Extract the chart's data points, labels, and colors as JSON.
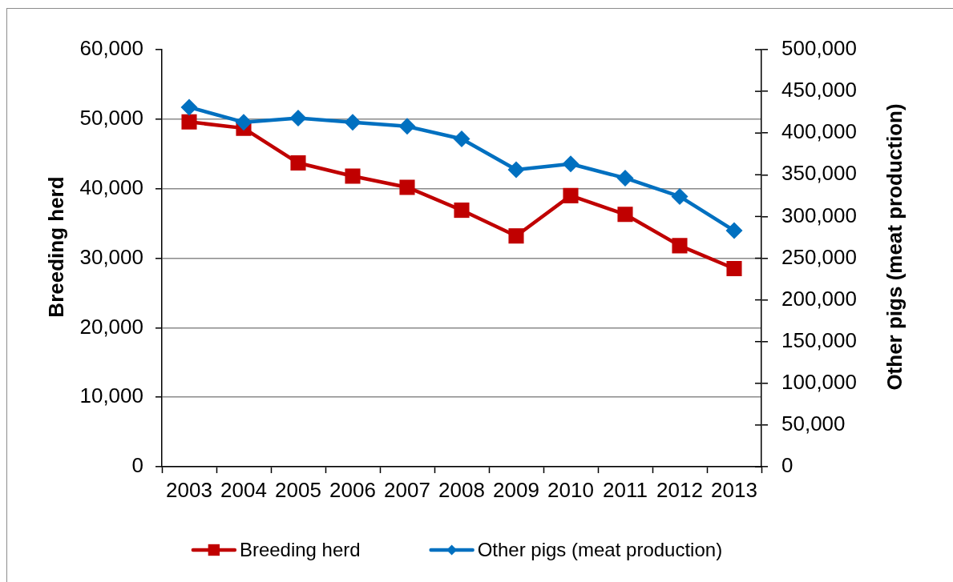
{
  "chart_data": {
    "type": "line",
    "categories": [
      "2003",
      "2004",
      "2005",
      "2006",
      "2007",
      "2008",
      "2009",
      "2010",
      "2011",
      "2012",
      "2013"
    ],
    "ylabel": "Breeding herd",
    "y2label": "Other pigs (meat production)",
    "ylim": [
      0,
      60000
    ],
    "yticks": [
      0,
      {
        "value": 10000,
        "label": "10,000"
      },
      {
        "value": 20000,
        "label": "20,000"
      },
      {
        "value": 30000,
        "label": "30,000"
      },
      {
        "value": 40000,
        "label": "40,000"
      },
      {
        "value": 50000,
        "label": "50,000"
      },
      {
        "value": 60000,
        "label": "60,000"
      }
    ],
    "y2lim": [
      0,
      500000
    ],
    "y2ticks": [
      0,
      {
        "value": 50000,
        "label": "50,000"
      },
      {
        "value": 100000,
        "label": "100,000"
      },
      {
        "value": 150000,
        "label": "150,000"
      },
      {
        "value": 200000,
        "label": "200,000"
      },
      {
        "value": 250000,
        "label": "250,000"
      },
      {
        "value": 300000,
        "label": "300,000"
      },
      {
        "value": 350000,
        "label": "350,000"
      },
      {
        "value": 400000,
        "label": "400,000"
      },
      {
        "value": 450000,
        "label": "450,000"
      },
      {
        "value": 500000,
        "label": "500,000"
      }
    ],
    "grid": "y",
    "legend": "bottom",
    "line_style": "solid",
    "series": [
      {
        "name": "Breeding herd",
        "color": "#c00000",
        "marker": "square",
        "values": [
          49600,
          48700,
          43700,
          41800,
          40200,
          36900,
          33200,
          39000,
          36300,
          31800,
          28500
        ]
      },
      {
        "name": "Other pigs (meat production)",
        "color": "#0070c0",
        "marker": "diamond",
        "axis": "y2",
        "values": [
          431000,
          413000,
          418000,
          413000,
          408000,
          393000,
          356000,
          363000,
          346000,
          324000,
          283000
        ]
      }
    ]
  }
}
